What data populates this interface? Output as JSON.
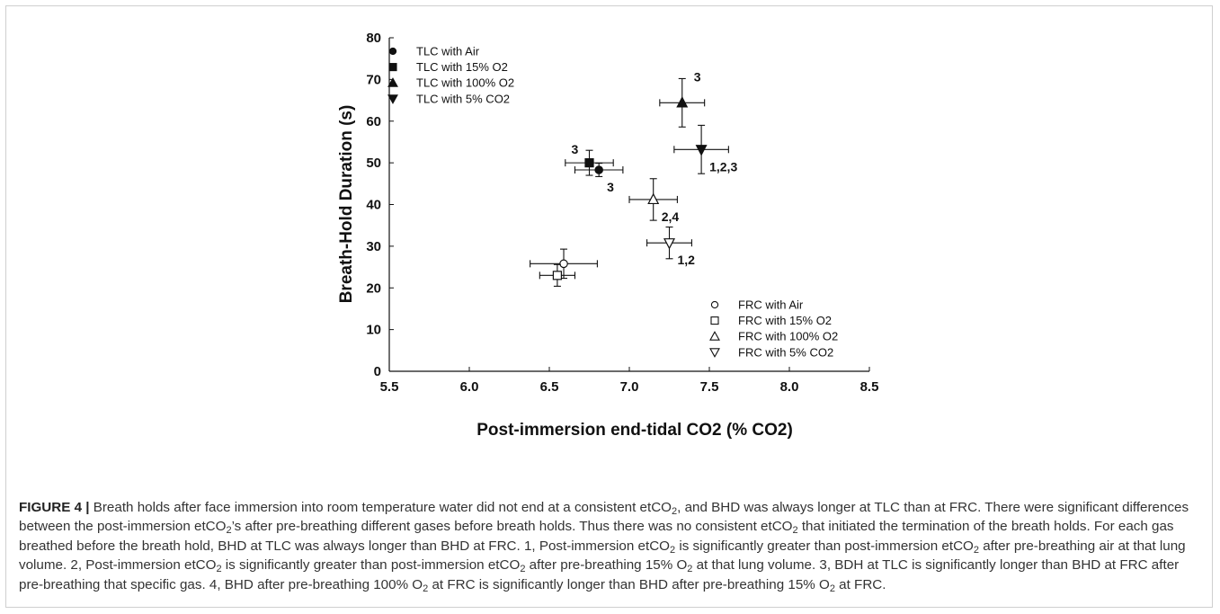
{
  "chart_data": {
    "type": "scatter",
    "xlabel": "Post-immersion end-tidal CO2 (% CO2)",
    "ylabel": "Breath-Hold Duration (s)",
    "xlim": [
      5.5,
      8.5
    ],
    "ylim": [
      0,
      80
    ],
    "xticks": [
      "5.5",
      "6.0",
      "6.5",
      "7.0",
      "7.5",
      "8.0",
      "8.5"
    ],
    "yticks": [
      "0",
      "10",
      "20",
      "30",
      "40",
      "50",
      "60",
      "70",
      "80"
    ],
    "grid": false,
    "series": [
      {
        "name": "TLC with Air",
        "marker": "filled-circle",
        "x": 6.81,
        "y": 48.3,
        "xerr": 0.15,
        "yerr": 1.6,
        "label": "3",
        "label_pos": "below-right"
      },
      {
        "name": "TLC with 15% O2",
        "marker": "filled-square",
        "x": 6.75,
        "y": 50.0,
        "xerr": 0.15,
        "yerr": 3.0,
        "label": "3",
        "label_pos": "above-left"
      },
      {
        "name": "TLC with 100% O2",
        "marker": "filled-triangle-up",
        "x": 7.33,
        "y": 64.4,
        "xerr": 0.14,
        "yerr": 5.8,
        "label": "3",
        "label_pos": "above-right"
      },
      {
        "name": "TLC with 5% CO2",
        "marker": "filled-triangle-down",
        "x": 7.45,
        "y": 53.2,
        "xerr": 0.17,
        "yerr": 5.8,
        "label": "1,2,3",
        "label_pos": "below-right"
      },
      {
        "name": "FRC with Air",
        "marker": "open-circle",
        "x": 6.59,
        "y": 25.8,
        "xerr": 0.21,
        "yerr": 3.5,
        "label": "",
        "label_pos": ""
      },
      {
        "name": "FRC with 15% O2",
        "marker": "open-square",
        "x": 6.55,
        "y": 23.0,
        "xerr": 0.11,
        "yerr": 2.6,
        "label": "",
        "label_pos": ""
      },
      {
        "name": "FRC with 100% O2",
        "marker": "open-triangle-up",
        "x": 7.15,
        "y": 41.2,
        "xerr": 0.15,
        "yerr": 5.0,
        "label": "2,4",
        "label_pos": "below-right"
      },
      {
        "name": "FRC with 5% CO2",
        "marker": "open-triangle-down",
        "x": 7.25,
        "y": 30.8,
        "xerr": 0.14,
        "yerr": 3.8,
        "label": "1,2",
        "label_pos": "below-right"
      }
    ],
    "legends": [
      {
        "placement": "top-left",
        "entries": [
          "TLC with Air",
          "TLC with 15% O2",
          "TLC with 100% O2",
          "TLC with 5% CO2"
        ]
      },
      {
        "placement": "bottom-right",
        "entries": [
          "FRC with Air",
          "FRC with 15% O2",
          "FRC with 100% O2",
          "FRC with 5% CO2"
        ]
      }
    ]
  },
  "caption": {
    "label": "FIGURE 4 |",
    "text_html": " Breath holds after face immersion into room temperature water did not end at a consistent etCO<sub>2</sub>, and BHD was always longer at TLC than at FRC. There were significant differences between the post-immersion etCO<sub>2</sub>’s after pre-breathing different gases before breath holds. Thus there was no consistent etCO<sub>2</sub> that initiated the termination of the breath holds. For each gas breathed before the breath hold, BHD at TLC was always longer than BHD at FRC. 1, Post-immersion etCO<sub>2</sub> is significantly greater than post-immersion etCO<sub>2</sub> after pre-breathing air at that lung volume. 2, Post-immersion etCO<sub>2</sub> is significantly greater than post-immersion etCO<sub>2</sub> after pre-breathing 15% O<sub>2</sub> at that lung volume. 3, BDH at TLC is significantly longer than BHD at FRC after pre-breathing that specific gas. 4, BHD after pre-breathing 100% O<sub>2</sub> at FRC is significantly longer than BHD after pre-breathing 15% O<sub>2</sub> at FRC."
  }
}
